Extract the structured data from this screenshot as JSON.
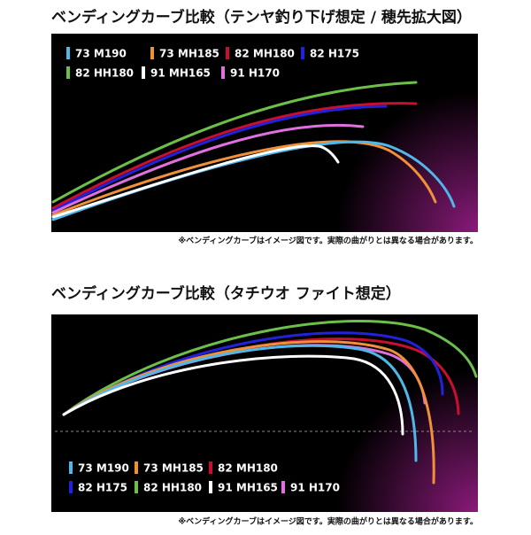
{
  "panels": [
    {
      "title": "ベンディングカーブ比較（テンヤ釣り下げ想定 / 穂先拡大図）",
      "legend": [
        {
          "label": "73 M190",
          "color": "#4fb8e8"
        },
        {
          "label": "73 MH185",
          "color": "#f0913a"
        },
        {
          "label": "82 MH180",
          "color": "#c8102e"
        },
        {
          "label": "82 H175",
          "color": "#2222dd"
        },
        {
          "label": "82 HH180",
          "color": "#6cc04a"
        },
        {
          "label": "91 MH165",
          "color": "#ffffff"
        },
        {
          "label": "91 H170",
          "color": "#e070e0"
        }
      ],
      "note": "※ベンディングカーブはイメージ図です。実際の曲がりとは異なる場合があります。"
    },
    {
      "title": "ベンディングカーブ比較（タチウオ ファイト想定）",
      "legend": [
        {
          "label": "73 M190",
          "color": "#4fb8e8"
        },
        {
          "label": "73 MH185",
          "color": "#f0913a"
        },
        {
          "label": "82 MH180",
          "color": "#c8102e"
        },
        {
          "label": "82 H175",
          "color": "#2222dd"
        },
        {
          "label": "82 HH180",
          "color": "#6cc04a"
        },
        {
          "label": "91 MH165",
          "color": "#ffffff"
        },
        {
          "label": "91 H170",
          "color": "#e070e0"
        }
      ],
      "note": "※ベンディングカーブはイメージ図です。実際の曲がりとは異なる場合があります。"
    }
  ]
}
